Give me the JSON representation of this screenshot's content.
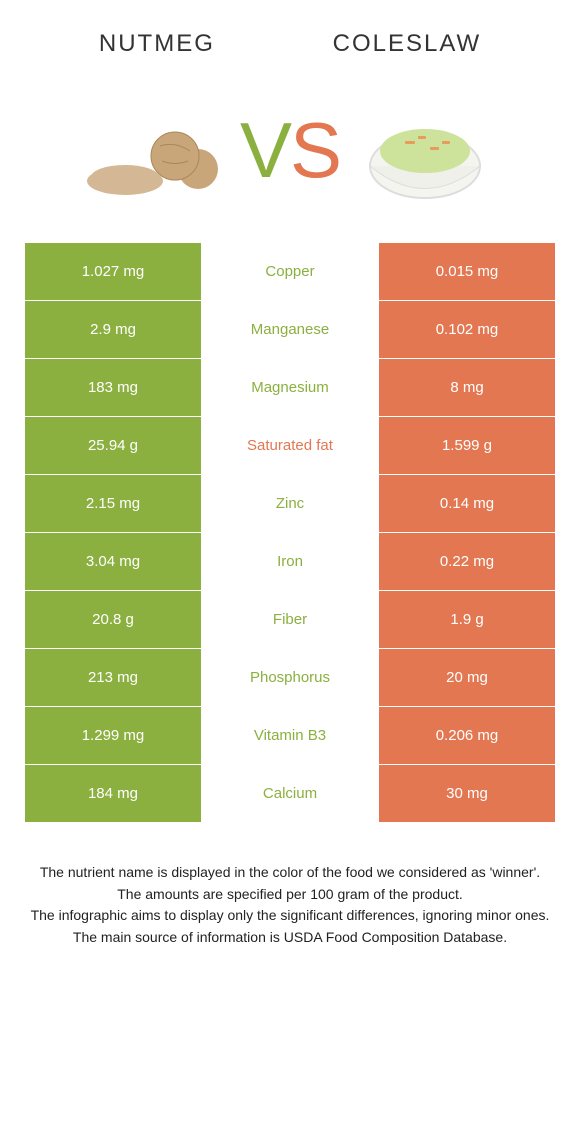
{
  "header": {
    "left_title": "Nutmeg",
    "right_title": "Coleslaw"
  },
  "vs": {
    "v": "V",
    "s": "S"
  },
  "colors": {
    "left": "#8bb03f",
    "right": "#e37752",
    "background": "#ffffff",
    "text": "#222222"
  },
  "table": {
    "rows": [
      {
        "left": "1.027 mg",
        "label": "Copper",
        "right": "0.015 mg",
        "winner": "left"
      },
      {
        "left": "2.9 mg",
        "label": "Manganese",
        "right": "0.102 mg",
        "winner": "left"
      },
      {
        "left": "183 mg",
        "label": "Magnesium",
        "right": "8 mg",
        "winner": "left"
      },
      {
        "left": "25.94 g",
        "label": "Saturated fat",
        "right": "1.599 g",
        "winner": "right"
      },
      {
        "left": "2.15 mg",
        "label": "Zinc",
        "right": "0.14 mg",
        "winner": "left"
      },
      {
        "left": "3.04 mg",
        "label": "Iron",
        "right": "0.22 mg",
        "winner": "left"
      },
      {
        "left": "20.8 g",
        "label": "Fiber",
        "right": "1.9 g",
        "winner": "left"
      },
      {
        "left": "213 mg",
        "label": "Phosphorus",
        "right": "20 mg",
        "winner": "left"
      },
      {
        "left": "1.299 mg",
        "label": "Vitamin B3",
        "right": "0.206 mg",
        "winner": "left"
      },
      {
        "left": "184 mg",
        "label": "Calcium",
        "right": "30 mg",
        "winner": "left"
      }
    ]
  },
  "footer": {
    "line1": "The nutrient name is displayed in the color of the food we considered as 'winner'.",
    "line2": "The amounts are specified per 100 gram of the product.",
    "line3": "The infographic aims to display only the significant differences, ignoring minor ones.",
    "line4": "The main source of information is USDA Food Composition Database."
  },
  "typography": {
    "title_fontsize": 24,
    "vs_fontsize": 78,
    "cell_fontsize": 15,
    "footer_fontsize": 14
  }
}
